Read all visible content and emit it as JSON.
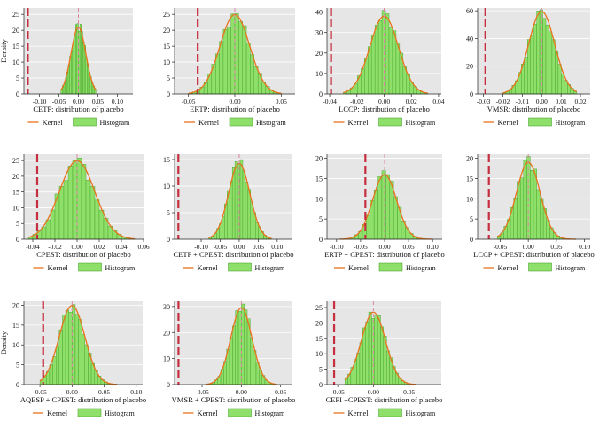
{
  "figure": {
    "legend": {
      "kernel": "Kernel",
      "histogram": "Histogram"
    },
    "colors": {
      "panel_bg": "#e6e6e6",
      "bar_fill": "#8fe06a",
      "bar_edge": "#3a9a1e",
      "kernel": "#e8731c",
      "ref_line": "#c62f3f",
      "zero_line": "#d98aa0"
    }
  },
  "chart_data": [
    {
      "type": "histogram",
      "xlabel": "CETP: distribution of placebo",
      "ylabel": "Density",
      "xlim": [
        -0.14,
        0.14
      ],
      "ylim": [
        0,
        27
      ],
      "xticks": [
        "-0.10",
        "-0.05",
        "0.00",
        "0.05",
        "0.10"
      ],
      "xtick_values": [
        -0.1,
        -0.05,
        0.0,
        0.05,
        0.1
      ],
      "yticks": [
        "0",
        "5",
        "10",
        "15",
        "20",
        "25"
      ],
      "ytick_values": [
        0,
        5,
        10,
        15,
        20,
        25
      ],
      "mean": 0.0,
      "sd": 0.019,
      "bins_from": -0.045,
      "bins_to": 0.045,
      "true_estimate": -0.13
    },
    {
      "type": "histogram",
      "xlabel": "ERTP: distribution of placebo",
      "ylabel": "",
      "xlim": [
        -0.065,
        0.065
      ],
      "ylim": [
        0,
        27
      ],
      "xticks": [
        "-0.05",
        "0.00",
        "0.05"
      ],
      "xtick_values": [
        -0.05,
        0.0,
        0.05
      ],
      "yticks": [
        "0",
        "5",
        "10",
        "15",
        "20",
        "25"
      ],
      "ytick_values": [
        0,
        5,
        10,
        15,
        20,
        25
      ],
      "mean": 0.0,
      "sd": 0.016,
      "bins_from": -0.05,
      "bins_to": 0.05,
      "true_estimate": -0.04
    },
    {
      "type": "histogram",
      "xlabel": "LCCP: distribution of placebo",
      "ylabel": "",
      "xlim": [
        -0.042,
        0.042
      ],
      "ylim": [
        0,
        42
      ],
      "xticks": [
        "-0.04",
        "-0.02",
        "0.00",
        "0.02",
        "0.04"
      ],
      "xtick_values": [
        -0.04,
        -0.02,
        0.0,
        0.02,
        0.04
      ],
      "yticks": [
        "0",
        "10",
        "20",
        "30",
        "40"
      ],
      "ytick_values": [
        0,
        10,
        20,
        30,
        40
      ],
      "mean": 0.0,
      "sd": 0.0105,
      "bins_from": -0.03,
      "bins_to": 0.032,
      "true_estimate": -0.039
    },
    {
      "type": "histogram",
      "xlabel": "VMSR: distribution of placebo",
      "ylabel": "",
      "xlim": [
        -0.033,
        0.025
      ],
      "ylim": [
        0,
        62
      ],
      "xticks": [
        "-0.03",
        "-0.02",
        "-0.01",
        "0.00",
        "0.01",
        "0.02"
      ],
      "xtick_values": [
        -0.03,
        -0.02,
        -0.01,
        0.0,
        0.01,
        0.02
      ],
      "yticks": [
        "0",
        "20",
        "40",
        "60"
      ],
      "ytick_values": [
        0,
        20,
        40,
        60
      ],
      "mean": 0.0,
      "sd": 0.0067,
      "bins_from": -0.02,
      "bins_to": 0.018,
      "true_estimate": -0.029
    },
    {
      "type": "histogram",
      "xlabel": "CPEST: distribution of placebo",
      "ylabel": "",
      "xlim": [
        -0.048,
        0.06
      ],
      "ylim": [
        0,
        27
      ],
      "xticks": [
        "-0.04",
        "-0.02",
        "0.00",
        "0.02",
        "0.04",
        "0.06"
      ],
      "xtick_values": [
        -0.04,
        -0.02,
        0.0,
        0.02,
        0.04,
        0.06
      ],
      "yticks": [
        "0",
        "5",
        "10",
        "15",
        "20",
        "25"
      ],
      "ytick_values": [
        0,
        5,
        10,
        15,
        20,
        25
      ],
      "mean": 0.0,
      "sd": 0.016,
      "bins_from": -0.044,
      "bins_to": 0.052,
      "true_estimate": -0.036
    },
    {
      "type": "histogram",
      "xlabel": "CETP + CPEST: distribution of placebo",
      "ylabel": "",
      "xlim": [
        -0.17,
        0.14
      ],
      "ylim": [
        0,
        16
      ],
      "xticks": [
        "-0.10",
        "-0.05",
        "0.00",
        "0.05",
        "0.10"
      ],
      "xtick_values": [
        -0.1,
        -0.05,
        0.0,
        0.05,
        0.1
      ],
      "yticks": [
        "0",
        "5",
        "10",
        "15"
      ],
      "ytick_values": [
        0,
        5,
        10,
        15
      ],
      "mean": 0.0,
      "sd": 0.028,
      "bins_from": -0.08,
      "bins_to": 0.085,
      "true_estimate": -0.16
    },
    {
      "type": "histogram",
      "xlabel": "ERTP + CPEST: distribution of placebo",
      "ylabel": "",
      "xlim": [
        -0.12,
        0.12
      ],
      "ylim": [
        0,
        21
      ],
      "xticks": [
        "-0.10",
        "-0.05",
        "0.00",
        "0.05",
        "0.10"
      ],
      "xtick_values": [
        -0.1,
        -0.05,
        0.0,
        0.05,
        0.1
      ],
      "yticks": [
        "0",
        "5",
        "10",
        "15",
        "20"
      ],
      "ytick_values": [
        0,
        5,
        10,
        15,
        20
      ],
      "mean": 0.0,
      "sd": 0.025,
      "bins_from": -0.095,
      "bins_to": 0.1,
      "true_estimate": -0.04
    },
    {
      "type": "histogram",
      "xlabel": "LCCP + CPEST: distribution of placebo",
      "ylabel": "",
      "xlim": [
        -0.09,
        0.11
      ],
      "ylim": [
        0,
        21
      ],
      "xticks": [
        "-0.05",
        "0.00",
        "0.05",
        "0.10"
      ],
      "xtick_values": [
        -0.05,
        0.0,
        0.05,
        0.1
      ],
      "yticks": [
        "0",
        "5",
        "10",
        "15",
        "20"
      ],
      "ytick_values": [
        0,
        5,
        10,
        15,
        20
      ],
      "mean": 0.0,
      "sd": 0.021,
      "bins_from": -0.055,
      "bins_to": 0.085,
      "true_estimate": -0.07
    },
    {
      "type": "histogram",
      "xlabel": "AQESP + CPEST: distribution of placebo",
      "ylabel": "Density",
      "xlim": [
        -0.075,
        0.11
      ],
      "ylim": [
        0,
        21
      ],
      "xticks": [
        "-0.05",
        "0.00",
        "0.05",
        "0.10"
      ],
      "xtick_values": [
        -0.05,
        0.0,
        0.05,
        0.1
      ],
      "yticks": [
        "0",
        "5",
        "10",
        "15",
        "20"
      ],
      "ytick_values": [
        0,
        5,
        10,
        15,
        20
      ],
      "mean": 0.0,
      "sd": 0.02,
      "bins_from": -0.05,
      "bins_to": 0.07,
      "true_estimate": -0.045
    },
    {
      "type": "histogram",
      "xlabel": "VMSR + CPEST: distribution of placebo",
      "ylabel": "",
      "xlim": [
        -0.085,
        0.065
      ],
      "ylim": [
        0,
        32
      ],
      "xticks": [
        "-0.05",
        "0.00",
        "0.05"
      ],
      "xtick_values": [
        -0.05,
        0.0,
        0.05
      ],
      "yticks": [
        "0",
        "10",
        "20",
        "30"
      ],
      "ytick_values": [
        0,
        10,
        20,
        30
      ],
      "mean": 0.0,
      "sd": 0.0135,
      "bins_from": -0.045,
      "bins_to": 0.045,
      "true_estimate": -0.08
    },
    {
      "type": "histogram",
      "xlabel": "CEPI +CPEST: distribution of placebo",
      "ylabel": "",
      "xlim": [
        -0.065,
        0.095
      ],
      "ylim": [
        0,
        27
      ],
      "xticks": [
        "-0.05",
        "0.00",
        "0.05"
      ],
      "xtick_values": [
        -0.05,
        0.0,
        0.05
      ],
      "yticks": [
        "0",
        "5",
        "10",
        "15",
        "20",
        "25"
      ],
      "ytick_values": [
        0,
        5,
        10,
        15,
        20,
        25
      ],
      "mean": 0.0,
      "sd": 0.017,
      "bins_from": -0.04,
      "bins_to": 0.06,
      "true_estimate": -0.055
    }
  ]
}
